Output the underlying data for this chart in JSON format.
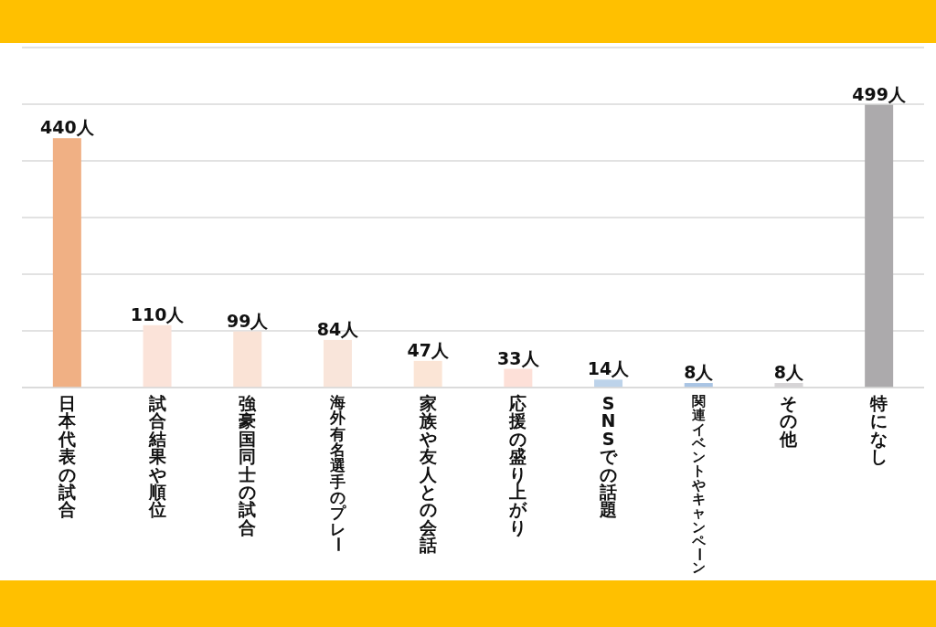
{
  "chart_data": {
    "type": "bar",
    "categories": [
      "日本代表の試合",
      "試合結果や順位",
      "強豪国同士の試合",
      "海外有名選手のプレー",
      "家族や友人との会話",
      "応援の盛り上がり",
      "SNSでの話題",
      "関連イベントやキャンペーン",
      "その他",
      "特になし"
    ],
    "values": [
      440,
      110,
      99,
      84,
      47,
      33,
      14,
      8,
      8,
      499
    ],
    "value_labels": [
      "440人",
      "110人",
      "99人",
      "84人",
      "47人",
      "33人",
      "14人",
      "8人",
      "8人",
      "499人"
    ],
    "colors": [
      "#f0b084",
      "#fbe3d9",
      "#fae3d6",
      "#f9e5da",
      "#fbe5d6",
      "#fde0d8",
      "#bdd3ea",
      "#a9c4e4",
      "#d6d4d6",
      "#acaaac"
    ],
    "ylim": [
      0,
      600
    ],
    "yticks": [
      {
        "value": 0,
        "label": null
      },
      {
        "value": 100,
        "label": null
      },
      {
        "value": 200,
        "label": null
      },
      {
        "value": 300,
        "label": null
      },
      {
        "value": 400,
        "label": null
      },
      {
        "value": 500,
        "label": null
      },
      {
        "value": 600,
        "label": null
      }
    ],
    "grid": "y"
  }
}
